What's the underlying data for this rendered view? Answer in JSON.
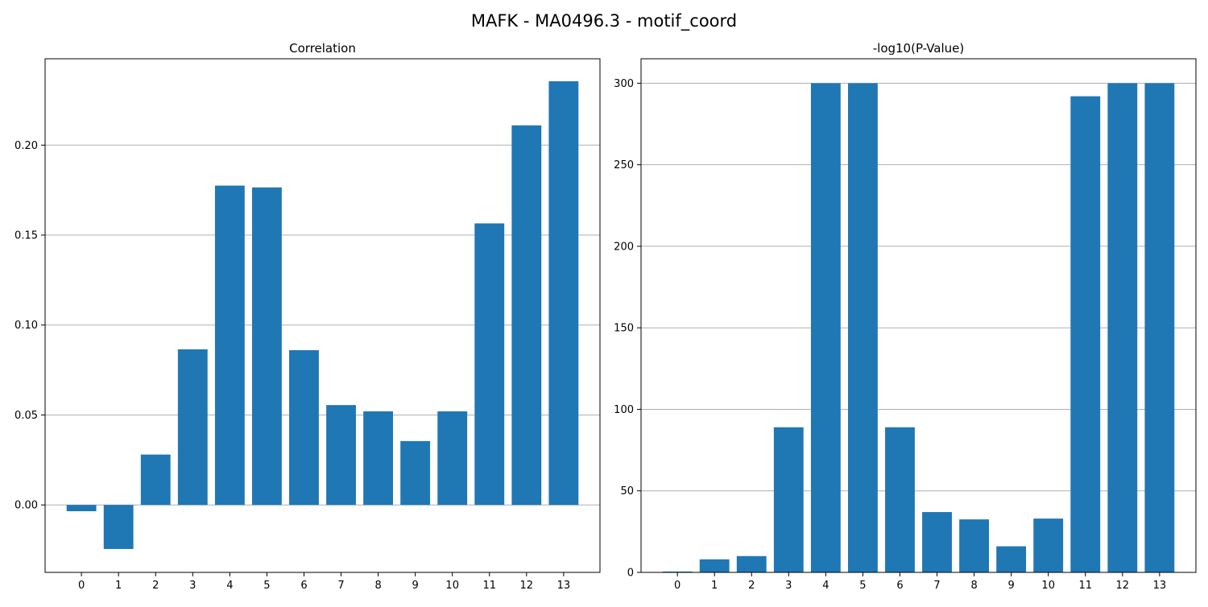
{
  "figure": {
    "title": "MAFK - MA0496.3 - motif_coord"
  },
  "colors": {
    "bar": "#1f77b4",
    "grid": "#b0b0b0",
    "axis": "#000000"
  },
  "chart_data": [
    {
      "type": "bar",
      "title": "Correlation",
      "categories": [
        "0",
        "1",
        "2",
        "3",
        "4",
        "5",
        "6",
        "7",
        "8",
        "9",
        "10",
        "11",
        "12",
        "13"
      ],
      "values": [
        -0.0035,
        -0.0245,
        0.028,
        0.0865,
        0.1775,
        0.1765,
        0.086,
        0.0555,
        0.052,
        0.0355,
        0.052,
        0.1565,
        0.211,
        0.2355
      ],
      "ylim": [
        -0.0375,
        0.248
      ],
      "yticks": [
        0.0,
        0.05,
        0.1,
        0.15,
        0.2
      ],
      "ytick_labels": [
        "0.00",
        "0.05",
        "0.10",
        "0.15",
        "0.20"
      ],
      "grid": "y"
    },
    {
      "type": "bar",
      "title": "-log10(P-Value)",
      "categories": [
        "0",
        "1",
        "2",
        "3",
        "4",
        "5",
        "6",
        "7",
        "8",
        "9",
        "10",
        "11",
        "12",
        "13"
      ],
      "values": [
        0.5,
        8,
        10,
        89,
        300,
        300,
        89,
        37,
        32.5,
        16,
        33,
        292,
        300,
        300
      ],
      "ylim": [
        0,
        315
      ],
      "yticks": [
        0,
        50,
        100,
        150,
        200,
        250,
        300
      ],
      "ytick_labels": [
        "0",
        "50",
        "100",
        "150",
        "200",
        "250",
        "300"
      ],
      "grid": "y"
    }
  ]
}
